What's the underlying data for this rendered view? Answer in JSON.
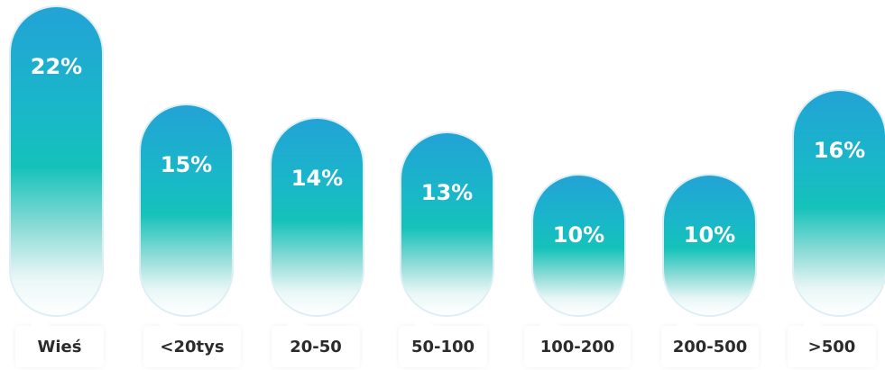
{
  "chart_data": {
    "type": "bar",
    "categories": [
      "Wieś",
      "<20tys",
      "20-50",
      "50-100",
      "100-200",
      "200-500",
      ">500"
    ],
    "values": [
      22,
      15,
      14,
      13,
      10,
      10,
      16
    ],
    "value_labels": [
      "22%",
      "15%",
      "14%",
      "13%",
      "10%",
      "10%",
      "16%"
    ],
    "title": "",
    "xlabel": "",
    "ylabel": "",
    "ylim": [
      0,
      22
    ],
    "grid": false,
    "colors": {
      "bar_top": "#22a3d6",
      "bar_mid": "#15c2ba",
      "bar_bottom": "#ffffff",
      "label_text": "#2b2b2b",
      "value_text": "#ffffff"
    }
  }
}
